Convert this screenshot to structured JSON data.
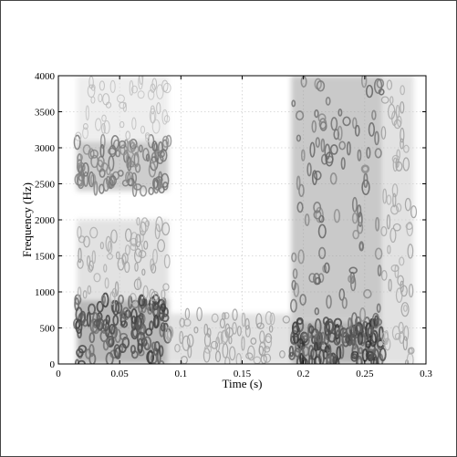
{
  "chart_data": {
    "type": "heatmap",
    "title": "",
    "xlabel": "Time (s)",
    "ylabel": "Frequency (Hz)",
    "xlim": [
      0,
      0.3
    ],
    "ylim": [
      0,
      4000
    ],
    "x_ticks": [
      0,
      0.05,
      0.1,
      0.15,
      0.2,
      0.25,
      0.3
    ],
    "x_tick_labels": [
      "0",
      "0.05",
      "0.1",
      "0.15",
      "0.2",
      "0.25",
      "0.3"
    ],
    "y_ticks": [
      0,
      500,
      1000,
      1500,
      2000,
      2500,
      3000,
      3500,
      4000
    ],
    "y_tick_labels": [
      "0",
      "500",
      "1000",
      "1500",
      "2000",
      "2500",
      "3000",
      "3500",
      "4000"
    ],
    "grid": true,
    "colormap": "grayscale",
    "intensity_regions": [
      {
        "t": [
          0.015,
          0.09
        ],
        "f": [
          0,
          900
        ],
        "level": 0.85
      },
      {
        "t": [
          0.015,
          0.09
        ],
        "f": [
          900,
          2000
        ],
        "level": 0.35
      },
      {
        "t": [
          0.015,
          0.09
        ],
        "f": [
          2400,
          3100
        ],
        "level": 0.6
      },
      {
        "t": [
          0.015,
          0.09
        ],
        "f": [
          3100,
          4000
        ],
        "level": 0.2
      },
      {
        "t": [
          0.09,
          0.19
        ],
        "f": [
          0,
          700
        ],
        "level": 0.35
      },
      {
        "t": [
          0.19,
          0.265
        ],
        "f": [
          0,
          600
        ],
        "level": 0.9
      },
      {
        "t": [
          0.19,
          0.265
        ],
        "f": [
          600,
          4000
        ],
        "level": 0.65
      },
      {
        "t": [
          0.265,
          0.29
        ],
        "f": [
          0,
          4000
        ],
        "level": 0.35
      }
    ]
  }
}
